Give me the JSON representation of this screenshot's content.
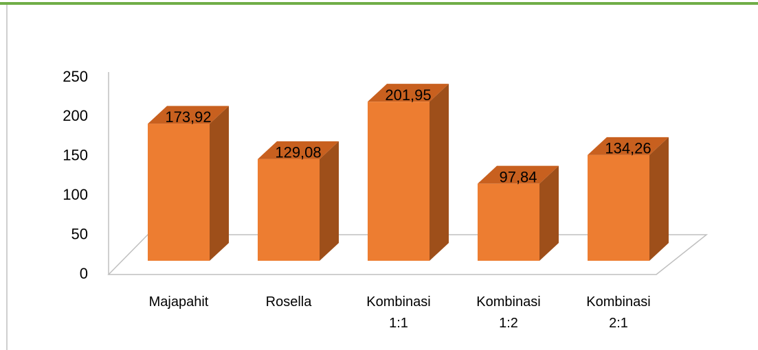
{
  "chart_data": {
    "type": "bar3d",
    "categories": [
      "Majapahit",
      "Rosella",
      "Kombinasi 1:1",
      "Kombinasi 1:2",
      "Kombinasi 2:1"
    ],
    "values": [
      173.92,
      129.08,
      201.95,
      97.84,
      134.26
    ],
    "value_labels": [
      "173,92",
      "129,08",
      "201,95",
      "97,84",
      "134,26"
    ],
    "color": "#ed7d31",
    "ylim": [
      0,
      250
    ],
    "yticks": [
      0,
      50,
      100,
      150,
      200,
      250
    ]
  }
}
